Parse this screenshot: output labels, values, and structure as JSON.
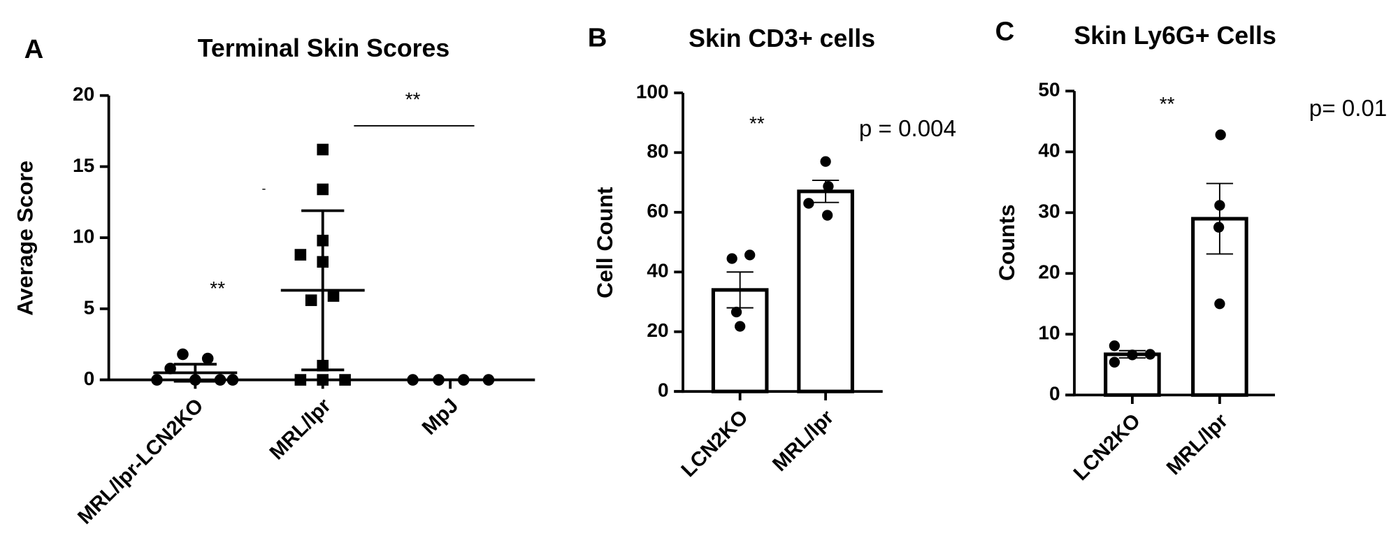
{
  "chart_data": [
    {
      "type": "dotplot",
      "panel_label": "A",
      "title": "Terminal Skin Scores",
      "y_label": "Average  Score",
      "categories": [
        "MRL/lpr-LCN2KO",
        "MRL/lpr",
        "MpJ"
      ],
      "markers": [
        "circle",
        "square",
        "circle"
      ],
      "points": [
        [
          0,
          0.8,
          1.8,
          0,
          1.5,
          0,
          0
        ],
        [
          16.2,
          13.4,
          9.8,
          8.8,
          8.3,
          5.9,
          5.6,
          1.0,
          0,
          0,
          0
        ],
        [
          0,
          0,
          0,
          0
        ]
      ],
      "means": [
        0.5,
        6.3,
        0
      ],
      "errors": [
        0.6,
        5.6,
        0
      ],
      "ylim": [
        0,
        20
      ],
      "yticks": [
        0,
        5,
        10,
        15,
        20
      ],
      "annotations": [
        "**",
        "**",
        "-"
      ]
    },
    {
      "type": "bar",
      "panel_label": "B",
      "title": "Skin CD3+ cells",
      "y_label": "Cell Count",
      "categories": [
        "LCN2KO",
        "MRL/lpr"
      ],
      "values": [
        34,
        67
      ],
      "errors": [
        6,
        3.7
      ],
      "points": [
        [
          44.5,
          45.7,
          26.6,
          21.8
        ],
        [
          77,
          68.7,
          63,
          59
        ]
      ],
      "ylim": [
        0,
        100
      ],
      "yticks": [
        0,
        20,
        40,
        60,
        80,
        100
      ],
      "annotations": [
        "**",
        "p = 0.004"
      ]
    },
    {
      "type": "bar",
      "panel_label": "C",
      "title": "Skin Ly6G+ Cells",
      "y_label": "Counts",
      "categories": [
        "LCN2KO",
        "MRL/lpr"
      ],
      "values": [
        6.7,
        29
      ],
      "errors": [
        0.6,
        5.8
      ],
      "points": [
        [
          8.1,
          5.4,
          6.6,
          6.7
        ],
        [
          42.8,
          31.2,
          27.6,
          15
        ]
      ],
      "ylim": [
        0,
        50
      ],
      "yticks": [
        0,
        10,
        20,
        30,
        40,
        50
      ],
      "annotations": [
        "**",
        "p= 0.01"
      ]
    }
  ]
}
